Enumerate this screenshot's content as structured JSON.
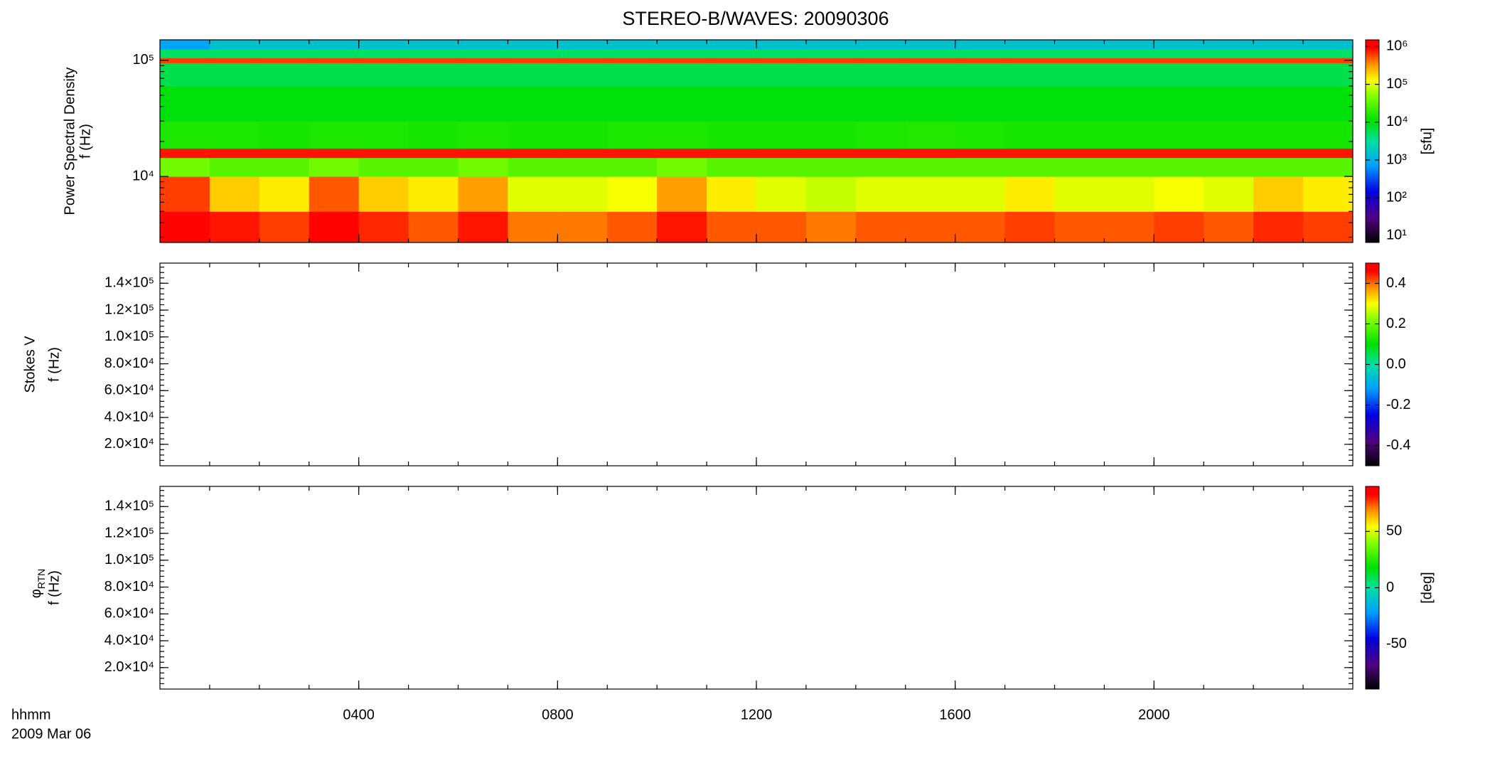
{
  "chart_data": [
    {
      "type": "heatmap",
      "title": "STEREO-B/WAVES: 20090306",
      "ylabel": [
        "Power Spectral Density",
        "f (Hz)"
      ],
      "ylog": true,
      "ylim": [
        2700,
        150000
      ],
      "yticks": [
        {
          "value": 10000,
          "label": "10⁴"
        },
        {
          "value": 100000,
          "label": "10⁵"
        }
      ],
      "xlim": [
        0,
        24
      ],
      "xbins": [
        0,
        1,
        2,
        3,
        4,
        5,
        6,
        7,
        8,
        9,
        10,
        11,
        12,
        13,
        14,
        15,
        16,
        17,
        18,
        19,
        20,
        21,
        22,
        23,
        24
      ],
      "ybins": [
        2700,
        5000,
        10000,
        14500,
        17500,
        30000,
        60000,
        95000,
        105000,
        125000,
        150000
      ],
      "z": [
        [
          900000,
          800000,
          600000,
          900000,
          700000,
          500000,
          800000,
          400000,
          400000,
          500000,
          800000,
          500000,
          500000,
          400000,
          500000,
          500000,
          500000,
          600000,
          500000,
          500000,
          600000,
          500000,
          700000,
          600000
        ],
        [
          600000,
          200000,
          150000,
          500000,
          200000,
          150000,
          300000,
          100000,
          100000,
          120000,
          300000,
          150000,
          100000,
          80000,
          100000,
          100000,
          100000,
          150000,
          100000,
          100000,
          120000,
          100000,
          200000,
          150000
        ],
        [
          40000,
          30000,
          30000,
          40000,
          30000,
          30000,
          40000,
          30000,
          30000,
          30000,
          40000,
          30000,
          30000,
          30000,
          30000,
          30000,
          30000,
          30000,
          30000,
          30000,
          30000,
          30000,
          30000,
          30000
        ],
        [
          800000,
          800000,
          800000,
          800000,
          800000,
          800000,
          800000,
          800000,
          800000,
          800000,
          800000,
          800000,
          800000,
          800000,
          800000,
          800000,
          800000,
          800000,
          800000,
          800000,
          800000,
          800000,
          800000,
          800000
        ],
        [
          15000,
          15000,
          14000,
          15000,
          15000,
          14000,
          15000,
          14000,
          14000,
          15000,
          15000,
          14000,
          14000,
          14000,
          15000,
          16000,
          15000,
          14000,
          14000,
          14000,
          14000,
          14000,
          14000,
          14000
        ],
        [
          10000,
          10000,
          10000,
          10000,
          10000,
          10000,
          10000,
          10000,
          10000,
          10000,
          10000,
          10000,
          10000,
          10000,
          10000,
          10000,
          10000,
          10000,
          10000,
          10000,
          10000,
          10000,
          10000,
          10000
        ],
        [
          6000,
          6000,
          6000,
          6000,
          6000,
          6000,
          6000,
          6000,
          6000,
          6000,
          6000,
          6000,
          6000,
          6000,
          6000,
          6000,
          6000,
          6000,
          6000,
          6000,
          6000,
          6000,
          6000,
          6000
        ],
        [
          600000,
          600000,
          600000,
          600000,
          600000,
          600000,
          600000,
          600000,
          600000,
          600000,
          600000,
          600000,
          600000,
          600000,
          600000,
          600000,
          600000,
          600000,
          600000,
          600000,
          600000,
          600000,
          600000,
          600000
        ],
        [
          5000,
          5000,
          5000,
          5000,
          5000,
          5000,
          5000,
          5000,
          5000,
          5000,
          5000,
          5000,
          5000,
          5000,
          5000,
          5000,
          5000,
          5000,
          5000,
          5000,
          5000,
          5000,
          5000,
          5000
        ],
        [
          800,
          1500,
          1500,
          1500,
          1500,
          1500,
          1500,
          1500,
          1500,
          1500,
          1500,
          1500,
          1500,
          1500,
          1500,
          1500,
          1500,
          1500,
          1500,
          1500,
          1500,
          1500,
          1500,
          1500
        ]
      ],
      "colormap": "rainbow",
      "clog": true,
      "clim": [
        6.6,
        1500000
      ],
      "cticks": [
        {
          "value": 10,
          "label": "10¹"
        },
        {
          "value": 100,
          "label": "10²"
        },
        {
          "value": 1000,
          "label": "10³"
        },
        {
          "value": 10000,
          "label": "10⁴"
        },
        {
          "value": 100000,
          "label": "10⁵"
        },
        {
          "value": 1000000,
          "label": "10⁶"
        }
      ],
      "colorbar_label": "[sfu]"
    },
    {
      "type": "heatmap",
      "ylabel": [
        "Stokes V",
        "f (Hz)"
      ],
      "ylog": false,
      "ylim": [
        4000,
        155000
      ],
      "yticks": [
        {
          "value": 20000,
          "label": "2.0×10⁴"
        },
        {
          "value": 40000,
          "label": "4.0×10⁴"
        },
        {
          "value": 60000,
          "label": "6.0×10⁴"
        },
        {
          "value": 80000,
          "label": "8.0×10⁴"
        },
        {
          "value": 100000,
          "label": "1.0×10⁵"
        },
        {
          "value": 120000,
          "label": "1.2×10⁵"
        },
        {
          "value": 140000,
          "label": "1.4×10⁵"
        }
      ],
      "xlim": [
        0,
        24
      ],
      "colormap": "rainbow",
      "clog": false,
      "clim": [
        -0.5,
        0.5
      ],
      "cticks": [
        -0.4,
        -0.2,
        {
          "value": 0,
          "label": "0.0"
        },
        0.2,
        0.4
      ]
    },
    {
      "type": "heatmap",
      "ylabel_symbol": "φ",
      "ylabel_subscript": "RTN",
      "ylabel": [
        "f (Hz)"
      ],
      "ylog": false,
      "ylim": [
        4000,
        155000
      ],
      "yticks": [
        {
          "value": 20000,
          "label": "2.0×10⁴"
        },
        {
          "value": 40000,
          "label": "4.0×10⁴"
        },
        {
          "value": 60000,
          "label": "6.0×10⁴"
        },
        {
          "value": 80000,
          "label": "8.0×10⁴"
        },
        {
          "value": 100000,
          "label": "1.0×10⁵"
        },
        {
          "value": 120000,
          "label": "1.2×10⁵"
        },
        {
          "value": 140000,
          "label": "1.4×10⁵"
        }
      ],
      "xlim": [
        0,
        24
      ],
      "xticks": [
        {
          "value": 4,
          "label": "0400"
        },
        {
          "value": 8,
          "label": "0800"
        },
        {
          "value": 12,
          "label": "1200"
        },
        {
          "value": 16,
          "label": "1600"
        },
        {
          "value": 20,
          "label": "2000"
        }
      ],
      "xlabel": [
        "hhmm",
        "2009 Mar 06"
      ],
      "colormap": "rainbow",
      "clog": false,
      "clim": [
        -90,
        90
      ],
      "cticks": [
        -50,
        0,
        50
      ],
      "colorbar_label": "[deg]"
    }
  ]
}
